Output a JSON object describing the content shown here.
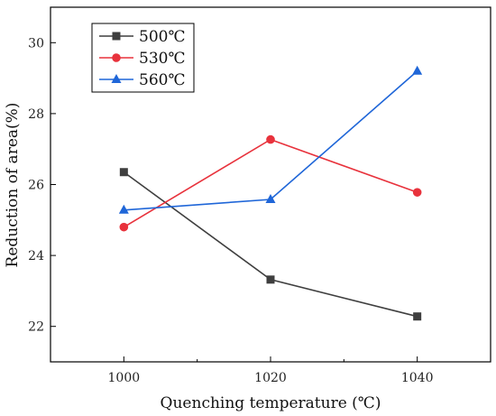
{
  "chart_data": {
    "type": "line",
    "title": "",
    "xlabel": "Quenching temperature (℃)",
    "ylabel": "Reduction of area(%)",
    "x": [
      1000,
      1020,
      1040
    ],
    "xlim": [
      990,
      1050
    ],
    "ylim": [
      21,
      31
    ],
    "xticks": [
      1000,
      1020,
      1040
    ],
    "yticks": [
      22,
      24,
      26,
      28,
      30
    ],
    "grid": false,
    "legend_position": "top-left",
    "series": [
      {
        "name": "500℃",
        "marker": "square",
        "color": "#3f3f3f",
        "values": [
          26.35,
          23.32,
          22.28
        ]
      },
      {
        "name": "530℃",
        "marker": "circle",
        "color": "#e8323c",
        "values": [
          24.8,
          27.27,
          25.78
        ]
      },
      {
        "name": "560℃",
        "marker": "triangle",
        "color": "#1f66d8",
        "values": [
          25.28,
          25.58,
          29.2
        ]
      }
    ]
  }
}
